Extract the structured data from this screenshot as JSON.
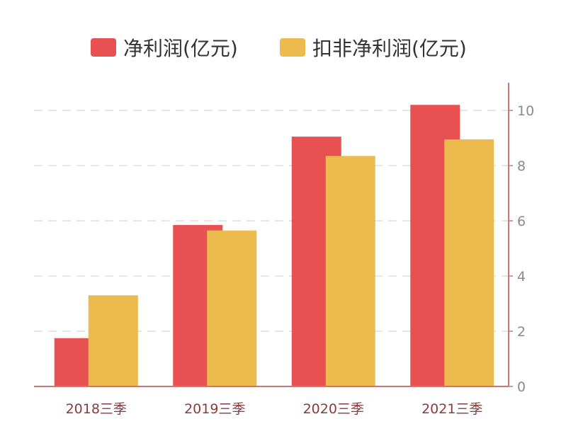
{
  "chart_data": {
    "type": "bar",
    "categories": [
      "2018三季",
      "2019三季",
      "2020三季",
      "2021三季"
    ],
    "series": [
      {
        "name": "净利润(亿元)",
        "values": [
          1.75,
          5.85,
          9.05,
          10.2
        ],
        "color": "#e85152"
      },
      {
        "name": "扣非净利润(亿元)",
        "values": [
          3.3,
          5.65,
          8.35,
          8.95
        ],
        "color": "#ecbb4e"
      }
    ],
    "yticks": [
      "0",
      "2",
      "4",
      "6",
      "8",
      "10"
    ],
    "ylim": [
      0,
      11
    ],
    "y_axis_side": "right",
    "grid": true,
    "legend_position": "top",
    "axis_color": "#c8787a",
    "grid_color": "#dddddd",
    "category_label_color": "#8b3a3c",
    "tick_label_color": "#8a8a8a"
  }
}
